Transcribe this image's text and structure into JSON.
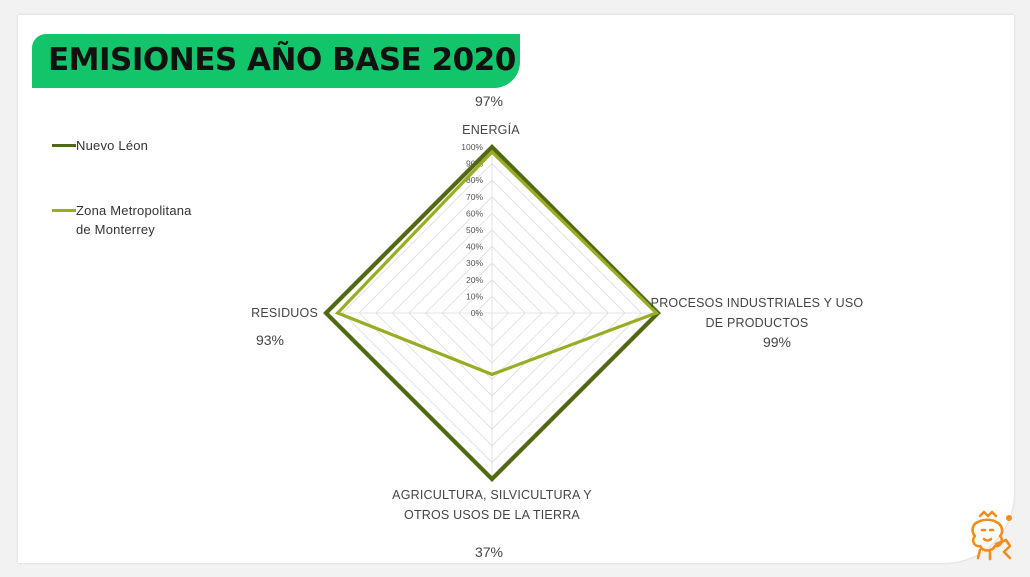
{
  "slide": {
    "title": "EMISIONES AÑO BASE  2020",
    "colors": {
      "banner": "#12c46a",
      "background": "#ffffff",
      "logo": "#f28c1b"
    },
    "logo_icon": "lion-logo-icon"
  },
  "chart_data": {
    "type": "radar",
    "title": "",
    "categories": [
      "ENERGÍA",
      "PROCESOS INDUSTRIALES Y USO DE PRODUCTOS",
      "AGRICULTURA, SILVICULTURA Y OTROS USOS DE LA TIERRA",
      "RESIDUOS"
    ],
    "category_lines": [
      [
        "ENERGÍA"
      ],
      [
        "PROCESOS INDUSTRIALES Y USO",
        "DE PRODUCTOS"
      ],
      [
        "AGRICULTURA, SILVICULTURA Y",
        "OTROS USOS DE LA TIERRA"
      ],
      [
        "RESIDUOS"
      ]
    ],
    "category_percentages": [
      "97%",
      "99%",
      "37%",
      "93%"
    ],
    "radial_ticks": [
      "0%",
      "10%",
      "20%",
      "30%",
      "40%",
      "50%",
      "60%",
      "70%",
      "80%",
      "90%",
      "100%"
    ],
    "rlim": [
      0,
      100
    ],
    "grid": true,
    "legend_position": "left",
    "series": [
      {
        "name": "Nuevo Léon",
        "values": [
          100,
          100,
          100,
          100
        ],
        "color": "#4f6a12"
      },
      {
        "name": "Zona Metropolitana de Monterrey",
        "values": [
          97,
          99,
          37,
          93
        ],
        "color": "#9aab24"
      }
    ],
    "legend_lines": [
      [
        "Nuevo Léon"
      ],
      [
        "Zona Metropolitana",
        "de Monterrey"
      ]
    ]
  }
}
